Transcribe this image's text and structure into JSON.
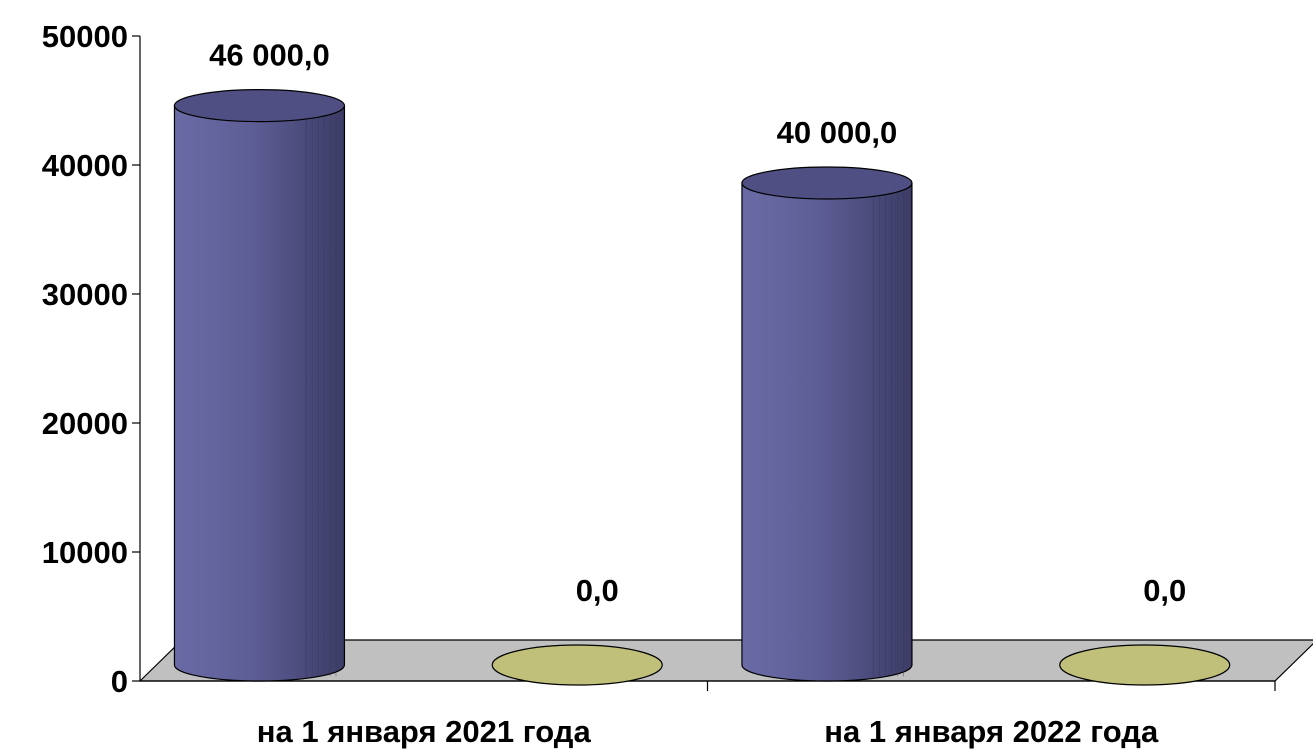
{
  "chart_data": {
    "type": "bar",
    "style": "3d-cylinder",
    "categories": [
      "на  1 января 2021 года",
      "на  1 января 2022 года"
    ],
    "series": [
      {
        "values": [
          46000,
          40000
        ],
        "color": "#62629a",
        "data_labels": [
          "46 000,0",
          "40 000,0"
        ]
      },
      {
        "values": [
          0,
          0
        ],
        "color": "#c0c07a",
        "data_labels": [
          "0,0",
          "0,0"
        ]
      }
    ],
    "y_ticks": [
      "0",
      "10000",
      "20000",
      "30000",
      "40000",
      "50000"
    ],
    "ylim": [
      0,
      50000
    ],
    "grid": false,
    "legend": "none",
    "floor_color": "#c0c0c0"
  }
}
